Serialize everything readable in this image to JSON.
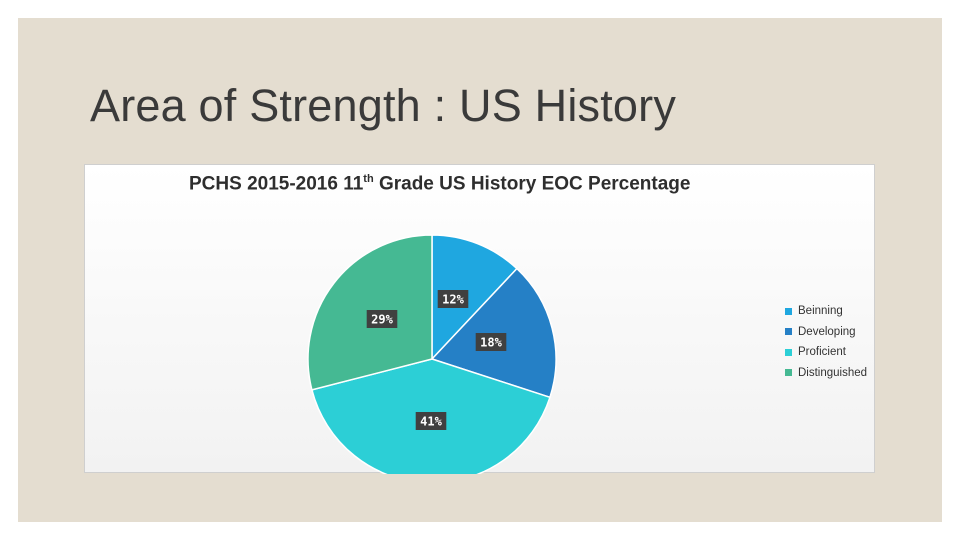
{
  "slide": {
    "title": "Area of Strength : US History"
  },
  "chart_data": {
    "type": "pie",
    "title_prefix": "PCHS 2015-2016 11",
    "title_sup": "th",
    "title_suffix": " Grade US History EOC Percentage",
    "categories": [
      "Beinning",
      "Developing",
      "Proficient",
      "Distinguished"
    ],
    "values": [
      12,
      18,
      41,
      29
    ],
    "data_labels": [
      "12%",
      "18%",
      "41%",
      "29%"
    ],
    "colors": [
      "#1fa7e0",
      "#2580c6",
      "#2ccfd6",
      "#45b993"
    ],
    "legend_position": "right"
  }
}
